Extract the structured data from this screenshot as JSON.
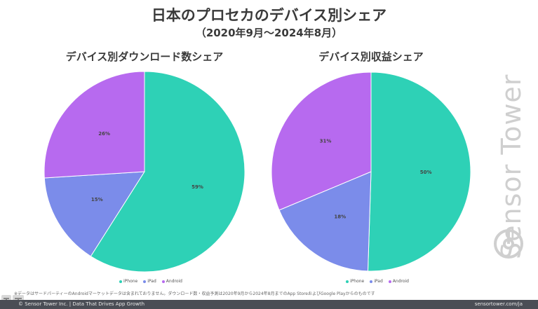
{
  "header": {
    "title": "日本のプロセカのデバイス別シェア",
    "subtitle": "（2020年9月〜2024年8月）"
  },
  "colors": {
    "iphone": "#2ed1b6",
    "ipad": "#7b8cea",
    "android": "#b76aef"
  },
  "chart_data": [
    {
      "type": "pie",
      "title": "デバイス別ダウンロード数シェア",
      "categories": [
        "iPhone",
        "iPad",
        "Android"
      ],
      "values": [
        59,
        15,
        26
      ],
      "labels": [
        "59%",
        "15%",
        "26%"
      ],
      "legend": [
        "iPhone",
        "iPad",
        "Android"
      ],
      "legend_position": "bottom"
    },
    {
      "type": "pie",
      "title": "デバイス別収益シェア",
      "categories": [
        "iPhone",
        "iPad",
        "Android"
      ],
      "values": [
        50,
        18,
        31
      ],
      "labels": [
        "50%",
        "18%",
        "31%"
      ],
      "legend": [
        "iPhone",
        "iPad",
        "Android"
      ],
      "legend_position": "bottom"
    }
  ],
  "watermark": {
    "text": "Sensor Tower"
  },
  "note": "※データはサードパーティーのAndroidマーケットデータは含まれておりません。ダウンロード数・収益予測は2020年9月から2024年8月までのApp StoreおよびGoogle Playからのものです",
  "footer": {
    "left": "© Sensor Tower Inc. | Data That Drives App Growth",
    "right": "sensortower.com/ja"
  }
}
